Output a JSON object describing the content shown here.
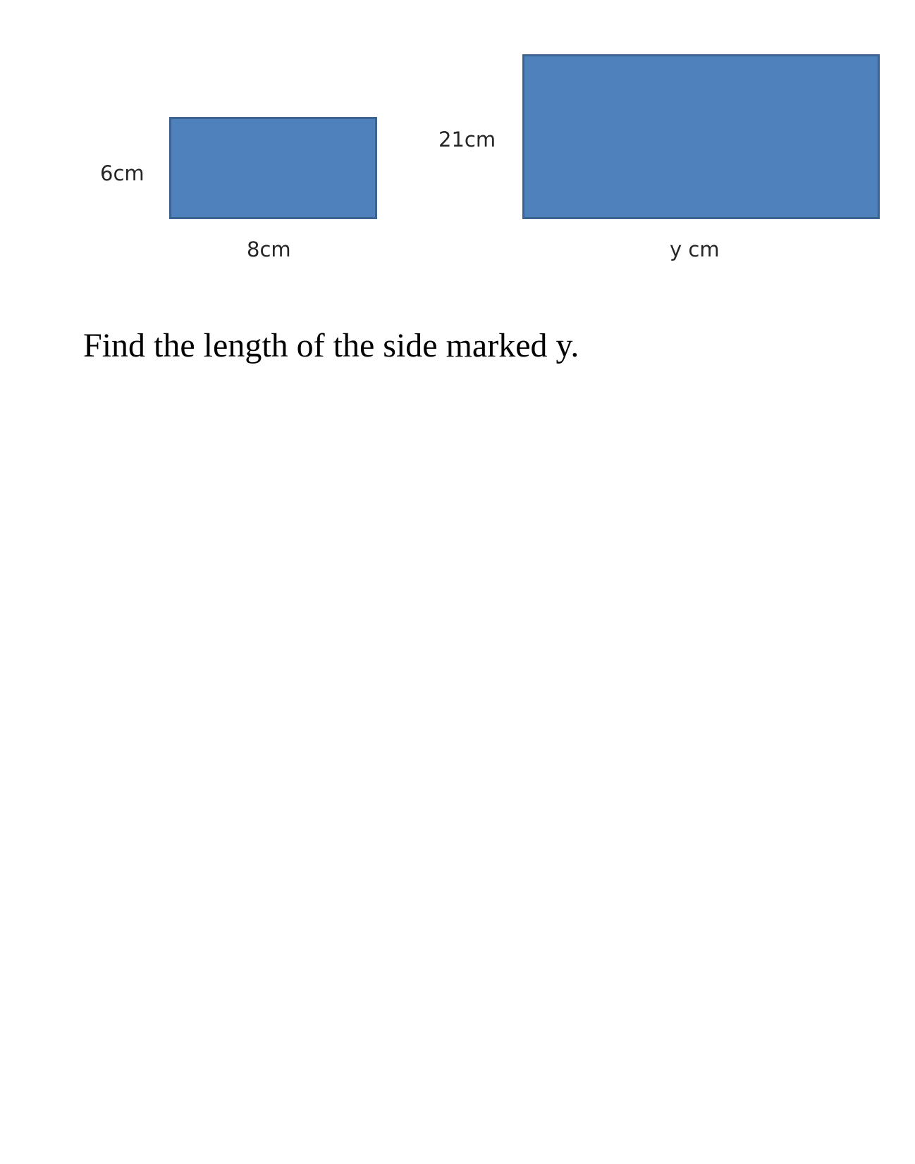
{
  "colors": {
    "rectangle_fill": "#4f81bd",
    "rectangle_border": "#3c6493",
    "label_text": "#262626"
  },
  "small_rectangle": {
    "height_label": "6cm",
    "width_label": "8cm"
  },
  "large_rectangle": {
    "height_label": "21cm",
    "width_label": "y cm"
  },
  "question": "Find the length of the side marked y."
}
